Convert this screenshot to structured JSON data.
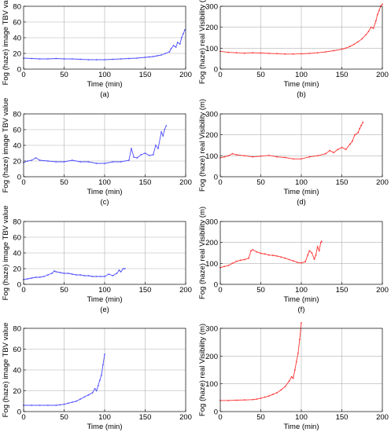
{
  "chart_data": [
    {
      "type": "line",
      "panel": "(a)",
      "color": "#4d4dff",
      "xlabel": "Time (min)",
      "ylabel": "Fog (haze) image TBV value",
      "xlim": [
        0,
        200
      ],
      "ylim": [
        0,
        80
      ],
      "xticks": [
        "0",
        "50",
        "100",
        "150",
        "200"
      ],
      "yticks": [
        "0",
        "20",
        "40",
        "60",
        "80"
      ],
      "grid": true,
      "series": [
        {
          "x": [
            0,
            10,
            20,
            30,
            40,
            50,
            60,
            70,
            80,
            90,
            100,
            110,
            120,
            130,
            140,
            150,
            155,
            160,
            165,
            170,
            175,
            180,
            182,
            185,
            188,
            190,
            193,
            195,
            197,
            199
          ],
          "y": [
            14,
            13.5,
            13,
            13,
            13.5,
            13,
            13,
            12.5,
            12,
            12,
            12,
            12.5,
            13,
            13.5,
            14,
            15,
            15.5,
            16,
            17,
            18,
            20,
            22,
            26,
            30,
            28,
            34,
            32,
            40,
            45,
            50
          ]
        }
      ]
    },
    {
      "type": "line",
      "panel": "(b)",
      "color": "#ff3333",
      "xlabel": "Time (min)",
      "ylabel": "Fog (haze) real Visibility (m)",
      "xlim": [
        0,
        200
      ],
      "ylim": [
        0,
        300
      ],
      "xticks": [
        "0",
        "50",
        "100",
        "150",
        "200"
      ],
      "yticks": [
        "0",
        "100",
        "200",
        "300"
      ],
      "grid": true,
      "series": [
        {
          "x": [
            0,
            10,
            20,
            30,
            40,
            50,
            60,
            70,
            80,
            90,
            100,
            110,
            120,
            130,
            140,
            150,
            155,
            160,
            165,
            170,
            175,
            180,
            183,
            186,
            189,
            192,
            194,
            196,
            198,
            200
          ],
          "y": [
            85,
            80,
            78,
            76,
            78,
            77,
            75,
            74,
            72,
            72,
            73,
            75,
            78,
            82,
            88,
            95,
            100,
            108,
            118,
            130,
            145,
            165,
            180,
            200,
            195,
            230,
            260,
            280,
            300,
            310
          ]
        }
      ]
    },
    {
      "type": "line",
      "panel": "(c)",
      "color": "#4d4dff",
      "xlabel": "Time (min)",
      "ylabel": "Fog (haze) image TBV value",
      "xlim": [
        0,
        200
      ],
      "ylim": [
        0,
        80
      ],
      "xticks": [
        "0",
        "50",
        "100",
        "150",
        "200"
      ],
      "yticks": [
        "0",
        "20",
        "40",
        "60",
        "80"
      ],
      "grid": true,
      "series": [
        {
          "x": [
            0,
            5,
            10,
            15,
            20,
            30,
            40,
            50,
            60,
            70,
            80,
            90,
            100,
            110,
            120,
            130,
            133,
            136,
            140,
            145,
            150,
            155,
            160,
            163,
            166,
            170,
            172,
            174,
            176
          ],
          "y": [
            18,
            20,
            21,
            24,
            21,
            20,
            19,
            19,
            21,
            19,
            19,
            17,
            17,
            19,
            19,
            21,
            36,
            25,
            24,
            28,
            30,
            27,
            28,
            40,
            36,
            57,
            52,
            60,
            65
          ]
        }
      ]
    },
    {
      "type": "line",
      "panel": "(d)",
      "color": "#ff3333",
      "xlabel": "Time (min)",
      "ylabel": "Fog (haze) real Visibility (m)",
      "xlim": [
        0,
        200
      ],
      "ylim": [
        0,
        300
      ],
      "xticks": [
        "0",
        "50",
        "100",
        "150",
        "200"
      ],
      "yticks": [
        "0",
        "100",
        "200",
        "300"
      ],
      "grid": true,
      "series": [
        {
          "x": [
            0,
            5,
            10,
            15,
            20,
            30,
            40,
            50,
            60,
            70,
            80,
            90,
            100,
            110,
            120,
            130,
            135,
            140,
            145,
            150,
            155,
            160,
            163,
            166,
            170,
            172,
            174,
            176
          ],
          "y": [
            90,
            95,
            100,
            110,
            105,
            100,
            95,
            98,
            102,
            95,
            92,
            85,
            85,
            95,
            100,
            110,
            125,
            115,
            130,
            140,
            130,
            155,
            170,
            200,
            210,
            230,
            245,
            260
          ]
        }
      ]
    },
    {
      "type": "line",
      "panel": "(e)",
      "color": "#4d4dff",
      "xlabel": "Time (min)",
      "ylabel": "Fog (haze) image TBV value",
      "xlim": [
        0,
        200
      ],
      "ylim": [
        0,
        80
      ],
      "xticks": [
        "0",
        "50",
        "100",
        "150",
        "200"
      ],
      "yticks": [
        "0",
        "20",
        "40",
        "60",
        "80"
      ],
      "grid": true,
      "series": [
        {
          "x": [
            0,
            5,
            10,
            15,
            20,
            25,
            30,
            35,
            38,
            40,
            45,
            50,
            55,
            60,
            65,
            70,
            75,
            80,
            85,
            90,
            95,
            100,
            105,
            110,
            115,
            118,
            120,
            123,
            125
          ],
          "y": [
            6,
            7,
            8,
            9,
            9,
            10,
            12,
            14,
            17,
            16,
            15,
            14,
            14,
            13,
            12,
            12,
            11,
            11,
            10,
            10,
            10,
            10,
            13,
            11,
            14,
            18,
            16,
            20,
            20
          ]
        }
      ]
    },
    {
      "type": "line",
      "panel": "(f)",
      "color": "#ff3333",
      "xlabel": "Time (min)",
      "ylabel": "Fog (haze) real Visibility (m)",
      "xlim": [
        0,
        200
      ],
      "ylim": [
        0,
        300
      ],
      "xticks": [
        "0",
        "50",
        "100",
        "150",
        "200"
      ],
      "yticks": [
        "0",
        "100",
        "200",
        "300"
      ],
      "grid": true,
      "series": [
        {
          "x": [
            0,
            5,
            10,
            15,
            20,
            25,
            30,
            35,
            38,
            40,
            45,
            50,
            55,
            60,
            65,
            70,
            75,
            80,
            85,
            90,
            95,
            100,
            105,
            108,
            110,
            113,
            116,
            118,
            120,
            122,
            124,
            125
          ],
          "y": [
            80,
            85,
            90,
            100,
            110,
            115,
            118,
            125,
            160,
            165,
            155,
            148,
            145,
            140,
            138,
            135,
            130,
            125,
            118,
            112,
            105,
            102,
            108,
            140,
            160,
            150,
            120,
            140,
            180,
            160,
            200,
            205
          ]
        }
      ]
    },
    {
      "type": "line",
      "panel": "(g)",
      "color": "#4d4dff",
      "xlabel": "Time (min)",
      "ylabel": "Fog (haze) image TBV value",
      "xlim": [
        0,
        200
      ],
      "ylim": [
        0,
        80
      ],
      "xticks": [
        "0",
        "50",
        "100",
        "150",
        "200"
      ],
      "yticks": [
        "0",
        "20",
        "40",
        "60",
        "80"
      ],
      "grid": true,
      "series": [
        {
          "x": [
            0,
            10,
            20,
            30,
            40,
            45,
            50,
            55,
            60,
            65,
            70,
            75,
            80,
            85,
            88,
            90,
            92,
            94,
            96,
            98,
            100
          ],
          "y": [
            6,
            6,
            6,
            6,
            6,
            6.5,
            7,
            8,
            9,
            10,
            12,
            14,
            16,
            18,
            22,
            20,
            25,
            30,
            35,
            45,
            55
          ]
        }
      ]
    },
    {
      "type": "line",
      "panel": "(h)",
      "color": "#ff3333",
      "xlabel": "Time (min)",
      "ylabel": "Fog (haze) real Visibility (m)",
      "xlim": [
        0,
        200
      ],
      "ylim": [
        0,
        300
      ],
      "xticks": [
        "0",
        "50",
        "100",
        "150",
        "200"
      ],
      "yticks": [
        "0",
        "100",
        "200",
        "300"
      ],
      "grid": true,
      "series": [
        {
          "x": [
            0,
            10,
            20,
            30,
            40,
            45,
            50,
            55,
            60,
            65,
            70,
            75,
            80,
            85,
            88,
            90,
            92,
            94,
            96,
            98,
            100
          ],
          "y": [
            40,
            40,
            41,
            42,
            43,
            45,
            48,
            52,
            56,
            62,
            68,
            78,
            90,
            110,
            125,
            120,
            150,
            180,
            210,
            260,
            320
          ]
        }
      ]
    }
  ]
}
